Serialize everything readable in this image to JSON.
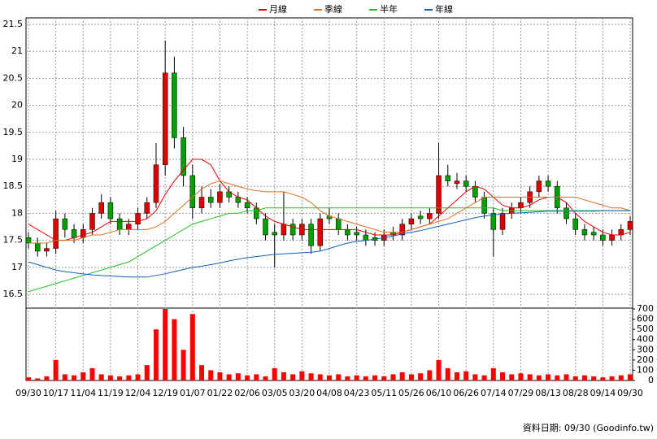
{
  "chart_data": [
    {
      "type": "candlestick",
      "categories": [
        "09/30",
        null,
        null,
        "10/17",
        null,
        null,
        "11/04",
        null,
        null,
        "11/19",
        null,
        null,
        "12/04",
        null,
        null,
        "12/19",
        null,
        null,
        "01/07",
        null,
        null,
        "01/22",
        null,
        null,
        "02/06",
        null,
        null,
        "03/05",
        null,
        null,
        "03/20",
        null,
        null,
        "04/08",
        null,
        null,
        "04/23",
        null,
        null,
        "05/11",
        null,
        null,
        "05/26",
        null,
        null,
        "06/10",
        null,
        null,
        "06/26",
        null,
        null,
        "07/14",
        null,
        null,
        "07/29",
        null,
        null,
        "08/13",
        null,
        null,
        "08/28",
        null,
        null,
        "09/14",
        null,
        null,
        "09/30"
      ],
      "open": [
        17.55,
        17.45,
        17.3,
        17.35,
        17.9,
        17.7,
        17.55,
        17.7,
        18.0,
        18.2,
        17.9,
        17.7,
        17.8,
        18.0,
        18.2,
        18.9,
        20.6,
        19.4,
        18.7,
        18.1,
        18.3,
        18.2,
        18.4,
        18.3,
        18.2,
        18.1,
        17.9,
        17.65,
        17.6,
        17.8,
        17.6,
        17.8,
        17.4,
        17.95,
        17.9,
        17.7,
        17.65,
        17.6,
        17.55,
        17.5,
        17.65,
        17.6,
        17.8,
        17.95,
        17.9,
        18.0,
        18.7,
        18.55,
        18.6,
        18.5,
        18.3,
        18.0,
        17.7,
        18.0,
        18.1,
        18.2,
        18.4,
        18.6,
        18.5,
        18.1,
        17.9,
        17.7,
        17.65,
        17.6,
        17.5,
        17.6,
        17.7
      ],
      "high": [
        17.65,
        17.55,
        17.45,
        18.05,
        18.0,
        17.8,
        17.8,
        18.1,
        18.35,
        18.3,
        18.0,
        17.9,
        18.1,
        18.3,
        19.3,
        21.2,
        20.9,
        19.6,
        18.9,
        18.5,
        18.45,
        18.55,
        18.5,
        18.4,
        18.3,
        18.2,
        18.0,
        17.8,
        18.4,
        17.9,
        17.9,
        17.9,
        18.0,
        18.1,
        18.0,
        17.8,
        17.75,
        17.7,
        17.65,
        17.7,
        17.75,
        17.9,
        18.0,
        18.05,
        18.1,
        19.3,
        18.9,
        18.75,
        18.7,
        18.6,
        18.4,
        18.1,
        18.1,
        18.2,
        18.3,
        18.5,
        18.7,
        18.7,
        18.6,
        18.2,
        18.0,
        17.8,
        17.75,
        17.7,
        17.7,
        17.8,
        17.95
      ],
      "low": [
        17.35,
        17.2,
        17.2,
        17.25,
        17.55,
        17.45,
        17.45,
        17.6,
        17.9,
        17.8,
        17.6,
        17.6,
        17.7,
        17.9,
        18.1,
        18.7,
        19.2,
        18.5,
        17.9,
        18.0,
        18.1,
        18.1,
        18.2,
        18.1,
        18.0,
        17.8,
        17.5,
        17.0,
        17.5,
        17.5,
        17.5,
        17.25,
        17.3,
        17.8,
        17.6,
        17.5,
        17.5,
        17.4,
        17.4,
        17.4,
        17.5,
        17.5,
        17.7,
        17.8,
        17.8,
        17.9,
        18.5,
        18.45,
        18.4,
        18.2,
        17.9,
        17.2,
        17.6,
        17.9,
        18.0,
        18.1,
        18.3,
        18.4,
        18.0,
        17.8,
        17.6,
        17.5,
        17.5,
        17.4,
        17.4,
        17.5,
        17.6
      ],
      "close": [
        17.45,
        17.3,
        17.35,
        17.9,
        17.7,
        17.55,
        17.7,
        18.0,
        18.2,
        17.9,
        17.7,
        17.8,
        18.0,
        18.2,
        18.9,
        20.6,
        19.4,
        18.7,
        18.1,
        18.3,
        18.2,
        18.4,
        18.3,
        18.2,
        18.1,
        17.9,
        17.6,
        17.6,
        17.8,
        17.6,
        17.8,
        17.4,
        17.9,
        17.9,
        17.7,
        17.6,
        17.6,
        17.5,
        17.5,
        17.6,
        17.6,
        17.8,
        17.9,
        17.9,
        18.0,
        18.7,
        18.6,
        18.6,
        18.5,
        18.3,
        18.0,
        17.7,
        18.0,
        18.1,
        18.2,
        18.4,
        18.6,
        18.5,
        18.1,
        17.9,
        17.7,
        17.6,
        17.6,
        17.5,
        17.6,
        17.7,
        17.85
      ],
      "up_color": "#e00000",
      "down_color": "#00a000",
      "series": [
        {
          "name": "月線",
          "color": "#e00000",
          "values": [
            17.8,
            17.7,
            17.6,
            17.5,
            17.5,
            17.55,
            17.6,
            17.65,
            17.75,
            17.85,
            17.85,
            17.85,
            17.85,
            17.9,
            18.05,
            18.35,
            18.6,
            18.8,
            19.0,
            19.0,
            18.9,
            18.6,
            18.4,
            18.3,
            18.25,
            18.1,
            17.95,
            17.85,
            17.8,
            17.75,
            17.7,
            17.7,
            17.7,
            17.7,
            17.7,
            17.7,
            17.7,
            17.65,
            17.6,
            17.6,
            17.6,
            17.65,
            17.7,
            17.75,
            17.8,
            17.95,
            18.1,
            18.25,
            18.4,
            18.5,
            18.45,
            18.3,
            18.15,
            18.1,
            18.1,
            18.15,
            18.25,
            18.3,
            18.3,
            18.2,
            18.0,
            17.85,
            17.75,
            17.65,
            17.6,
            17.6,
            17.65
          ]
        },
        {
          "name": "季線",
          "color": "#e07020",
          "values": [
            17.45,
            17.45,
            17.45,
            17.5,
            17.5,
            17.5,
            17.55,
            17.6,
            17.6,
            17.65,
            17.7,
            17.7,
            17.7,
            17.7,
            17.75,
            17.85,
            18.0,
            18.15,
            18.3,
            18.45,
            18.55,
            18.6,
            18.55,
            18.5,
            18.45,
            18.42,
            18.4,
            18.4,
            18.4,
            18.35,
            18.3,
            18.2,
            18.05,
            17.95,
            17.9,
            17.85,
            17.8,
            17.75,
            17.7,
            17.65,
            17.65,
            17.65,
            17.7,
            17.75,
            17.8,
            17.85,
            17.9,
            18.0,
            18.1,
            18.2,
            18.3,
            18.3,
            18.3,
            18.3,
            18.3,
            18.3,
            18.3,
            18.3,
            18.3,
            18.3,
            18.3,
            18.25,
            18.2,
            18.15,
            18.1,
            18.1,
            18.05
          ]
        },
        {
          "name": "半年",
          "color": "#20c020",
          "values": [
            16.55,
            16.6,
            16.65,
            16.7,
            16.75,
            16.8,
            16.85,
            16.9,
            16.95,
            17.0,
            17.05,
            17.1,
            17.2,
            17.3,
            17.4,
            17.5,
            17.6,
            17.7,
            17.8,
            17.85,
            17.9,
            17.95,
            18.0,
            18.0,
            18.05,
            18.05,
            18.1,
            18.1,
            18.1,
            18.1,
            18.1,
            18.1,
            18.1,
            18.1,
            18.1,
            18.1,
            18.1,
            18.1,
            18.1,
            18.1,
            18.1,
            18.1,
            18.1,
            18.1,
            18.1,
            18.1,
            18.1,
            18.1,
            18.1,
            18.1,
            18.1,
            18.1,
            18.05,
            18.05,
            18.05,
            18.05,
            18.05,
            18.05,
            18.05,
            18.05,
            18.05,
            18.05,
            18.05,
            18.05,
            18.05,
            18.05,
            18.05
          ]
        },
        {
          "name": "年線",
          "color": "#1060c0",
          "values": [
            17.1,
            17.05,
            17.0,
            16.95,
            16.92,
            16.9,
            16.88,
            16.86,
            16.85,
            16.84,
            16.83,
            16.82,
            16.82,
            16.82,
            16.85,
            16.88,
            16.92,
            16.96,
            17.0,
            17.02,
            17.05,
            17.08,
            17.12,
            17.15,
            17.18,
            17.2,
            17.22,
            17.24,
            17.25,
            17.26,
            17.27,
            17.28,
            17.3,
            17.35,
            17.4,
            17.45,
            17.48,
            17.5,
            17.52,
            17.55,
            17.58,
            17.62,
            17.65,
            17.68,
            17.72,
            17.76,
            17.8,
            17.84,
            17.88,
            17.92,
            17.95,
            17.97,
            17.99,
            18.0,
            18.01,
            18.02,
            18.03,
            18.04,
            18.04,
            18.04,
            18.04,
            18.04,
            18.04,
            18.05,
            18.05,
            18.05,
            18.05
          ]
        }
      ],
      "ylim": [
        16.26,
        21.62
      ],
      "yticks": [
        16.5,
        17,
        17.5,
        18,
        18.5,
        19,
        19.5,
        20,
        20.5,
        21,
        21.5
      ],
      "grid": true
    },
    {
      "type": "bar",
      "color": "#ff0000",
      "values": [
        30,
        20,
        40,
        200,
        60,
        50,
        80,
        120,
        60,
        50,
        40,
        50,
        60,
        150,
        500,
        700,
        600,
        300,
        650,
        150,
        100,
        80,
        60,
        70,
        50,
        60,
        40,
        120,
        80,
        60,
        90,
        70,
        60,
        50,
        60,
        40,
        50,
        40,
        50,
        40,
        60,
        80,
        60,
        70,
        100,
        200,
        120,
        80,
        90,
        60,
        50,
        120,
        80,
        60,
        70,
        60,
        50,
        60,
        50,
        60,
        40,
        50,
        40,
        30,
        40,
        50,
        60
      ],
      "ylim": [
        0,
        700
      ],
      "yticks": [
        0,
        100,
        200,
        300,
        400,
        500,
        600,
        700
      ]
    }
  ],
  "footer": "資料日期: 09/30 (Goodinfo.tw)"
}
